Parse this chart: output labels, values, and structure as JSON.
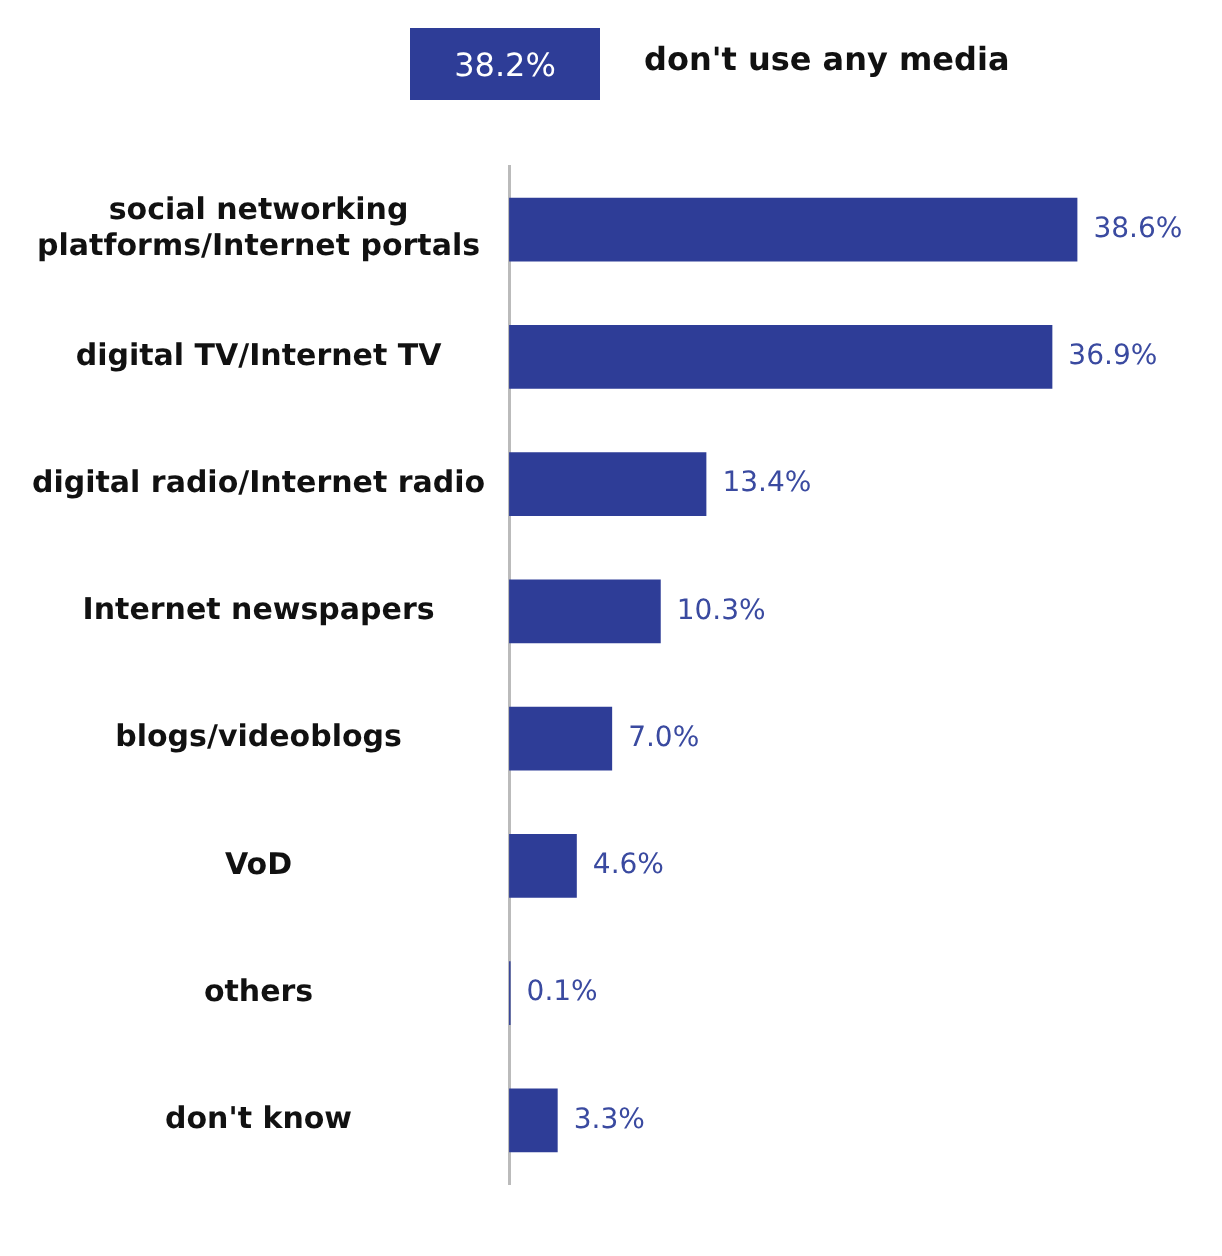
{
  "chart_data": {
    "type": "bar",
    "orientation": "horizontal",
    "categories": [
      "social networking platforms/Internet portals",
      "digital TV/Internet TV",
      "digital radio/Internet radio",
      "Internet newspapers",
      "blogs/videoblogs",
      "VoD",
      "others",
      "don't know"
    ],
    "values": [
      38.6,
      36.9,
      13.4,
      10.3,
      7.0,
      4.6,
      0.1,
      3.3
    ],
    "value_labels": [
      "38.6%",
      "36.9%",
      "13.4%",
      "10.3%",
      "7.0%",
      "4.6%",
      "0.1%",
      "3.3%"
    ],
    "color": "#2e3d97",
    "annotations": [
      "38.2%",
      "don't use any media"
    ],
    "grid": false,
    "legend": false
  }
}
